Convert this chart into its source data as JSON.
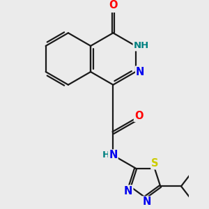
{
  "background_color": "#ebebeb",
  "bond_color": "#1a1a1a",
  "atom_colors": {
    "O": "#ff0000",
    "N": "#0000ee",
    "S": "#cccc00",
    "H_label": "#008080",
    "C": "#1a1a1a"
  },
  "figsize": [
    3.0,
    3.0
  ],
  "dpi": 100,
  "xlim": [
    0.0,
    6.5
  ],
  "ylim": [
    -0.5,
    7.0
  ]
}
